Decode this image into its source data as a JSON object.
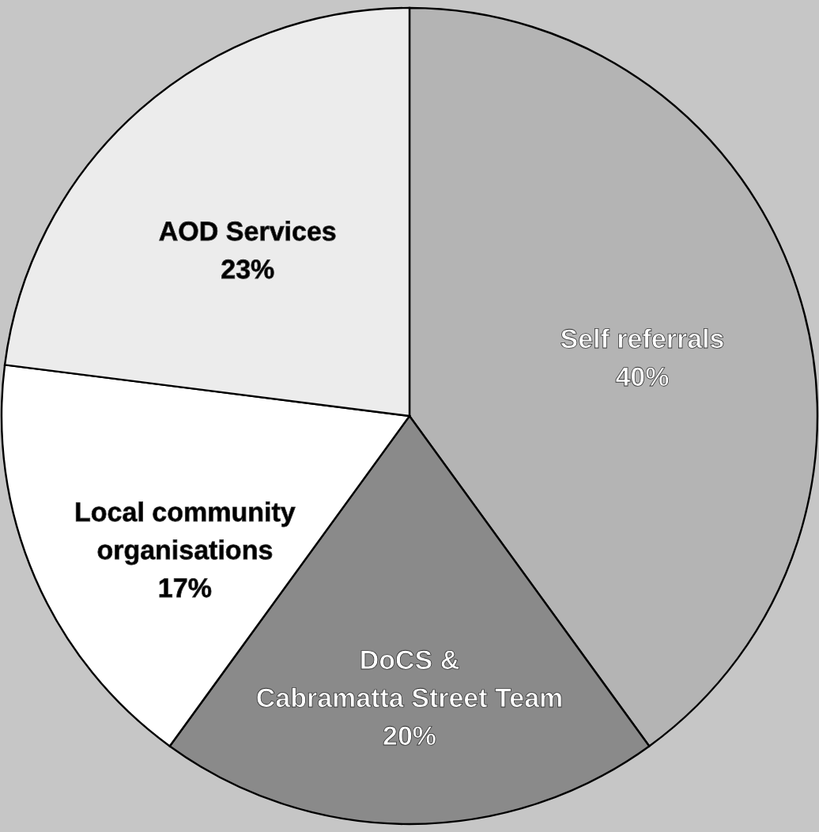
{
  "chart_data": {
    "type": "pie",
    "categories": [
      "Self referrals",
      "DoCS &\nCabramatta Street Team",
      "Local community\norganisations",
      "AOD Services"
    ],
    "values": [
      40,
      20,
      17,
      23
    ],
    "colors": [
      "#b4b4b4",
      "#8a8a8a",
      "#ffffff",
      "#ececec"
    ],
    "value_labels": [
      "40%",
      "20%",
      "17%",
      "23%"
    ],
    "legend": false
  }
}
